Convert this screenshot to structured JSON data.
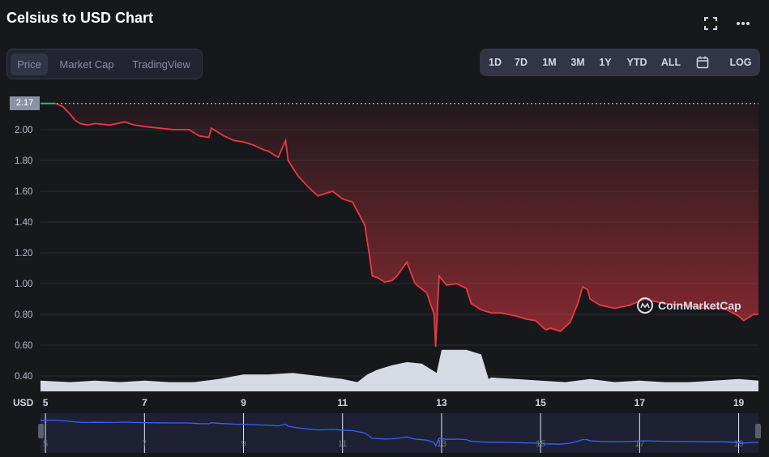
{
  "header": {
    "title": "Celsius to USD Chart",
    "fullscreen_icon": "fullscreen-icon",
    "more_icon": "more-horizontal-icon"
  },
  "tabs": [
    {
      "label": "Price",
      "active": true
    },
    {
      "label": "Market Cap",
      "active": false
    },
    {
      "label": "TradingView",
      "active": false
    }
  ],
  "ranges": [
    "1D",
    "7D",
    "1M",
    "3M",
    "1Y",
    "YTD",
    "ALL",
    "LOG"
  ],
  "calendar_icon": "calendar-icon",
  "current_price_label": "2.17",
  "currency_label": "USD",
  "watermark": "CoinMarketCap",
  "colors": {
    "up": "#16c784",
    "down": "#ea3943",
    "volume": "#d6dae5",
    "navigator_line": "#3861fb",
    "background": "#17181b"
  },
  "chart_data": {
    "type": "area",
    "title": "Celsius to USD Chart",
    "ylabel": "USD",
    "ylim": [
      0.3,
      2.2
    ],
    "y_ticks": [
      "2.00",
      "1.80",
      "1.60",
      "1.40",
      "1.20",
      "1.00",
      "0.80",
      "0.60",
      "0.40"
    ],
    "y_tick_values": [
      2.0,
      1.8,
      1.6,
      1.4,
      1.2,
      1.0,
      0.8,
      0.6,
      0.4
    ],
    "x_ticks": [
      "5",
      "7",
      "9",
      "11",
      "13",
      "15",
      "17",
      "19"
    ],
    "x_tick_values": [
      5,
      7,
      9,
      11,
      13,
      15,
      17,
      19
    ],
    "xlim": [
      4.9,
      19.4
    ],
    "baseline": 2.17,
    "series": [
      {
        "x": [
          4.9,
          5.2,
          5.35,
          5.5,
          5.6,
          5.7,
          5.85,
          6.0,
          6.3,
          6.6,
          6.8,
          7.0,
          7.3,
          7.6,
          7.9,
          8.1,
          8.3,
          8.35,
          8.6,
          8.8,
          9.0,
          9.2,
          9.4,
          9.5,
          9.7,
          9.85,
          9.9,
          10.1,
          10.3,
          10.5,
          10.8,
          11.0,
          11.2,
          11.3,
          11.45,
          11.55,
          11.6,
          11.7,
          11.85,
          12.0,
          12.1,
          12.3,
          12.45,
          12.5,
          12.7,
          12.85,
          12.88,
          12.95,
          13.1,
          13.3,
          13.5,
          13.6,
          13.8,
          14.0,
          14.2,
          14.5,
          14.7,
          14.9,
          15.1,
          15.2,
          15.4,
          15.6,
          15.75,
          15.85,
          15.95,
          16.0,
          16.2,
          16.5,
          16.8,
          17.1,
          17.5,
          17.9,
          18.3,
          18.7,
          19.0,
          19.1,
          19.3,
          19.4
        ],
        "y": [
          2.17,
          2.17,
          2.15,
          2.1,
          2.06,
          2.04,
          2.03,
          2.04,
          2.03,
          2.05,
          2.03,
          2.02,
          2.01,
          2.0,
          2.0,
          1.96,
          1.95,
          2.01,
          1.96,
          1.93,
          1.92,
          1.9,
          1.87,
          1.86,
          1.82,
          1.93,
          1.8,
          1.7,
          1.63,
          1.57,
          1.6,
          1.55,
          1.53,
          1.47,
          1.38,
          1.17,
          1.05,
          1.04,
          1.01,
          1.02,
          1.05,
          1.14,
          1.01,
          0.99,
          0.94,
          0.8,
          0.59,
          1.05,
          0.99,
          1.0,
          0.97,
          0.87,
          0.83,
          0.81,
          0.81,
          0.79,
          0.77,
          0.76,
          0.7,
          0.71,
          0.69,
          0.75,
          0.87,
          0.98,
          0.96,
          0.9,
          0.86,
          0.84,
          0.86,
          0.9,
          0.87,
          0.86,
          0.84,
          0.84,
          0.79,
          0.76,
          0.8,
          0.8
        ]
      }
    ],
    "volume": {
      "x": [
        4.9,
        5.5,
        6.0,
        6.5,
        7.0,
        7.5,
        8.0,
        8.5,
        9.0,
        9.5,
        10.0,
        10.5,
        11.0,
        11.3,
        11.5,
        11.7,
        12.0,
        12.3,
        12.6,
        12.8,
        12.9,
        13.0,
        13.5,
        13.8,
        13.95,
        14.0,
        14.5,
        15.0,
        15.5,
        16.0,
        16.5,
        17.0,
        17.5,
        18.0,
        18.5,
        19.0,
        19.4
      ],
      "y": [
        0.37,
        0.36,
        0.37,
        0.36,
        0.37,
        0.36,
        0.36,
        0.38,
        0.41,
        0.41,
        0.42,
        0.4,
        0.38,
        0.36,
        0.41,
        0.44,
        0.47,
        0.49,
        0.48,
        0.44,
        0.42,
        0.57,
        0.57,
        0.54,
        0.38,
        0.39,
        0.38,
        0.37,
        0.36,
        0.38,
        0.36,
        0.37,
        0.36,
        0.36,
        0.37,
        0.38,
        0.37
      ]
    },
    "grid": true,
    "legend": "none"
  }
}
